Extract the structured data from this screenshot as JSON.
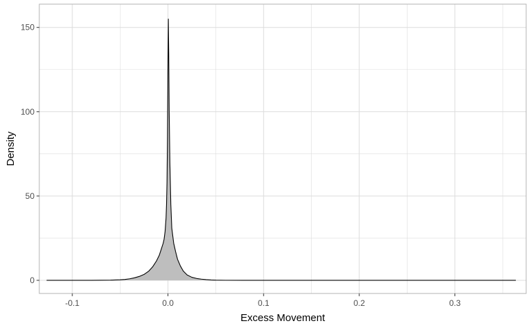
{
  "chart_data": {
    "type": "area",
    "title": "",
    "xlabel": "Excess Movement",
    "ylabel": "Density",
    "xlim": [
      -0.1345,
      0.3745
    ],
    "ylim": [
      -7.8,
      163.8
    ],
    "x_ticks": [
      -0.1,
      0.0,
      0.1,
      0.2,
      0.3
    ],
    "x_tick_labels": [
      "-0.1",
      "0.0",
      "0.1",
      "0.2",
      "0.3"
    ],
    "y_ticks": [
      0,
      50,
      100,
      150
    ],
    "y_tick_labels": [
      "0",
      "50",
      "100",
      "150"
    ],
    "grid": true,
    "legend": "none",
    "fill_color": "#bebebe",
    "line_color": "#000000",
    "grid_color": "#dcdcdc",
    "series": [
      {
        "x": [
          -0.1269,
          -0.08,
          -0.06,
          -0.05,
          -0.045,
          -0.04,
          -0.035,
          -0.03,
          -0.025,
          -0.02,
          -0.016,
          -0.012,
          -0.009,
          -0.007,
          -0.005,
          -0.004,
          -0.003,
          -0.002,
          -0.0015,
          -0.001,
          -0.0005,
          0.0,
          0.0004,
          0.0008,
          0.0013,
          0.002,
          0.003,
          0.004,
          0.006,
          0.008,
          0.01,
          0.013,
          0.016,
          0.02,
          0.025,
          0.03,
          0.035,
          0.04,
          0.045,
          0.05,
          0.06,
          0.08,
          0.12,
          0.2,
          0.3,
          0.3637
        ],
        "y": [
          0,
          0,
          0.1,
          0.3,
          0.5,
          0.9,
          1.5,
          2.3,
          3.5,
          5.5,
          8,
          11.5,
          15,
          18.5,
          22,
          24.5,
          29,
          37,
          45,
          58,
          85,
          130,
          155,
          135,
          100,
          70,
          45,
          31,
          22,
          17,
          12.5,
          8.5,
          5.5,
          3.2,
          1.8,
          1.1,
          0.7,
          0.4,
          0.2,
          0.1,
          0.03,
          0.01,
          0,
          0,
          0,
          0
        ]
      }
    ]
  }
}
